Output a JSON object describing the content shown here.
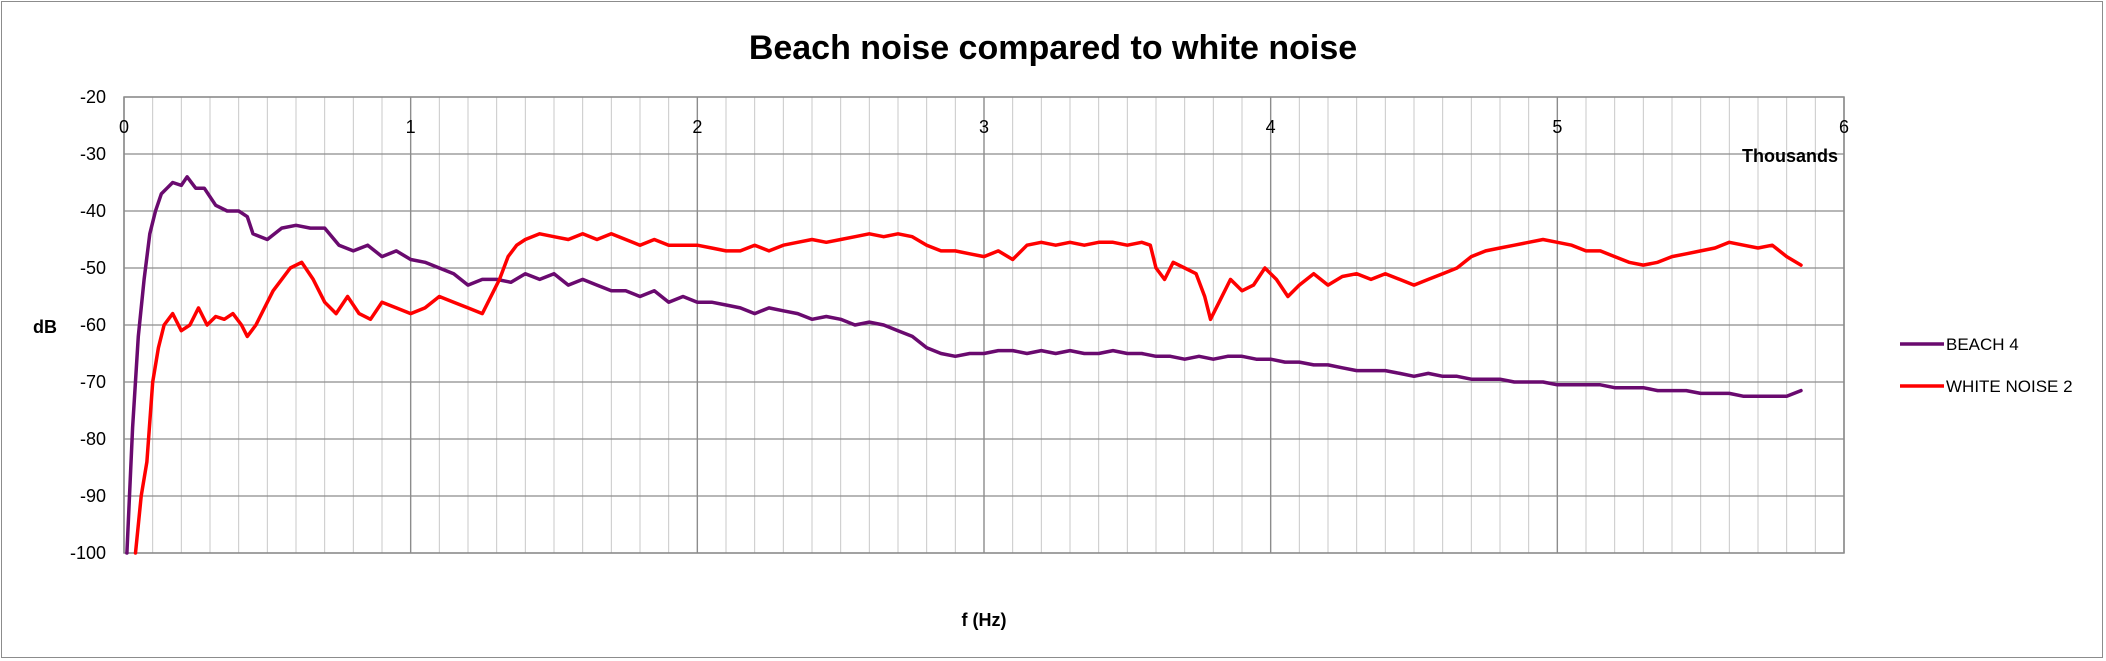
{
  "chart_data": {
    "type": "line",
    "title": "Beach noise compared to white noise",
    "xlabel": "f (Hz)",
    "ylabel": "dB",
    "x_unit_label": "Thousands",
    "xlim": [
      0,
      6
    ],
    "ylim": [
      -100,
      -20
    ],
    "x_ticks": [
      "0",
      "1",
      "2",
      "3",
      "4",
      "5",
      "6"
    ],
    "y_ticks": [
      "-20",
      "-30",
      "-40",
      "-50",
      "-60",
      "-70",
      "-80",
      "-90",
      "-100"
    ],
    "grid": true,
    "legend_position": "right",
    "series": [
      {
        "name": "BEACH 4",
        "color": "#6a0a6f",
        "points": [
          [
            0.01,
            -100
          ],
          [
            0.03,
            -78
          ],
          [
            0.05,
            -62
          ],
          [
            0.07,
            -52
          ],
          [
            0.09,
            -44
          ],
          [
            0.11,
            -40
          ],
          [
            0.13,
            -37
          ],
          [
            0.15,
            -36
          ],
          [
            0.17,
            -35
          ],
          [
            0.2,
            -35.5
          ],
          [
            0.22,
            -34
          ],
          [
            0.25,
            -36
          ],
          [
            0.28,
            -36
          ],
          [
            0.32,
            -39
          ],
          [
            0.36,
            -40
          ],
          [
            0.4,
            -40
          ],
          [
            0.43,
            -41
          ],
          [
            0.45,
            -44
          ],
          [
            0.5,
            -45
          ],
          [
            0.55,
            -43
          ],
          [
            0.6,
            -42.5
          ],
          [
            0.65,
            -43
          ],
          [
            0.7,
            -43
          ],
          [
            0.75,
            -46
          ],
          [
            0.8,
            -47
          ],
          [
            0.85,
            -46
          ],
          [
            0.9,
            -48
          ],
          [
            0.95,
            -47
          ],
          [
            1.0,
            -48.5
          ],
          [
            1.05,
            -49
          ],
          [
            1.1,
            -50
          ],
          [
            1.15,
            -51
          ],
          [
            1.2,
            -53
          ],
          [
            1.25,
            -52
          ],
          [
            1.3,
            -52
          ],
          [
            1.35,
            -52.5
          ],
          [
            1.4,
            -51
          ],
          [
            1.45,
            -52
          ],
          [
            1.5,
            -51
          ],
          [
            1.55,
            -53
          ],
          [
            1.6,
            -52
          ],
          [
            1.65,
            -53
          ],
          [
            1.7,
            -54
          ],
          [
            1.75,
            -54
          ],
          [
            1.8,
            -55
          ],
          [
            1.85,
            -54
          ],
          [
            1.9,
            -56
          ],
          [
            1.95,
            -55
          ],
          [
            2.0,
            -56
          ],
          [
            2.05,
            -56
          ],
          [
            2.1,
            -56.5
          ],
          [
            2.15,
            -57
          ],
          [
            2.2,
            -58
          ],
          [
            2.25,
            -57
          ],
          [
            2.3,
            -57.5
          ],
          [
            2.35,
            -58
          ],
          [
            2.4,
            -59
          ],
          [
            2.45,
            -58.5
          ],
          [
            2.5,
            -59
          ],
          [
            2.55,
            -60
          ],
          [
            2.6,
            -59.5
          ],
          [
            2.65,
            -60
          ],
          [
            2.7,
            -61
          ],
          [
            2.75,
            -62
          ],
          [
            2.8,
            -64
          ],
          [
            2.85,
            -65
          ],
          [
            2.9,
            -65.5
          ],
          [
            2.95,
            -65
          ],
          [
            3.0,
            -65
          ],
          [
            3.05,
            -64.5
          ],
          [
            3.1,
            -64.5
          ],
          [
            3.15,
            -65
          ],
          [
            3.2,
            -64.5
          ],
          [
            3.25,
            -65
          ],
          [
            3.3,
            -64.5
          ],
          [
            3.35,
            -65
          ],
          [
            3.4,
            -65
          ],
          [
            3.45,
            -64.5
          ],
          [
            3.5,
            -65
          ],
          [
            3.55,
            -65
          ],
          [
            3.6,
            -65.5
          ],
          [
            3.65,
            -65.5
          ],
          [
            3.7,
            -66
          ],
          [
            3.75,
            -65.5
          ],
          [
            3.8,
            -66
          ],
          [
            3.85,
            -65.5
          ],
          [
            3.9,
            -65.5
          ],
          [
            3.95,
            -66
          ],
          [
            4.0,
            -66
          ],
          [
            4.05,
            -66.5
          ],
          [
            4.1,
            -66.5
          ],
          [
            4.15,
            -67
          ],
          [
            4.2,
            -67
          ],
          [
            4.25,
            -67.5
          ],
          [
            4.3,
            -68
          ],
          [
            4.35,
            -68
          ],
          [
            4.4,
            -68
          ],
          [
            4.45,
            -68.5
          ],
          [
            4.5,
            -69
          ],
          [
            4.55,
            -68.5
          ],
          [
            4.6,
            -69
          ],
          [
            4.65,
            -69
          ],
          [
            4.7,
            -69.5
          ],
          [
            4.75,
            -69.5
          ],
          [
            4.8,
            -69.5
          ],
          [
            4.85,
            -70
          ],
          [
            4.9,
            -70
          ],
          [
            4.95,
            -70
          ],
          [
            5.0,
            -70.5
          ],
          [
            5.05,
            -70.5
          ],
          [
            5.1,
            -70.5
          ],
          [
            5.15,
            -70.5
          ],
          [
            5.2,
            -71
          ],
          [
            5.25,
            -71
          ],
          [
            5.3,
            -71
          ],
          [
            5.35,
            -71.5
          ],
          [
            5.4,
            -71.5
          ],
          [
            5.45,
            -71.5
          ],
          [
            5.5,
            -72
          ],
          [
            5.55,
            -72
          ],
          [
            5.6,
            -72
          ],
          [
            5.65,
            -72.5
          ],
          [
            5.7,
            -72.5
          ],
          [
            5.75,
            -72.5
          ],
          [
            5.8,
            -72.5
          ],
          [
            5.85,
            -71.5
          ]
        ]
      },
      {
        "name": "WHITE NOISE 2",
        "color": "#ff0000",
        "points": [
          [
            0.04,
            -100
          ],
          [
            0.06,
            -90
          ],
          [
            0.08,
            -84
          ],
          [
            0.1,
            -70
          ],
          [
            0.12,
            -64
          ],
          [
            0.14,
            -60
          ],
          [
            0.17,
            -58
          ],
          [
            0.2,
            -61
          ],
          [
            0.23,
            -60
          ],
          [
            0.26,
            -57
          ],
          [
            0.29,
            -60
          ],
          [
            0.32,
            -58.5
          ],
          [
            0.35,
            -59
          ],
          [
            0.38,
            -58
          ],
          [
            0.41,
            -60
          ],
          [
            0.43,
            -62
          ],
          [
            0.46,
            -60
          ],
          [
            0.49,
            -57
          ],
          [
            0.52,
            -54
          ],
          [
            0.55,
            -52
          ],
          [
            0.58,
            -50
          ],
          [
            0.62,
            -49
          ],
          [
            0.66,
            -52
          ],
          [
            0.7,
            -56
          ],
          [
            0.74,
            -58
          ],
          [
            0.78,
            -55
          ],
          [
            0.82,
            -58
          ],
          [
            0.86,
            -59
          ],
          [
            0.9,
            -56
          ],
          [
            0.95,
            -57
          ],
          [
            1.0,
            -58
          ],
          [
            1.05,
            -57
          ],
          [
            1.1,
            -55
          ],
          [
            1.15,
            -56
          ],
          [
            1.2,
            -57
          ],
          [
            1.25,
            -58
          ],
          [
            1.28,
            -55
          ],
          [
            1.31,
            -52
          ],
          [
            1.34,
            -48
          ],
          [
            1.37,
            -46
          ],
          [
            1.4,
            -45
          ],
          [
            1.45,
            -44
          ],
          [
            1.5,
            -44.5
          ],
          [
            1.55,
            -45
          ],
          [
            1.6,
            -44
          ],
          [
            1.65,
            -45
          ],
          [
            1.7,
            -44
          ],
          [
            1.75,
            -45
          ],
          [
            1.8,
            -46
          ],
          [
            1.85,
            -45
          ],
          [
            1.9,
            -46
          ],
          [
            1.95,
            -46
          ],
          [
            2.0,
            -46
          ],
          [
            2.05,
            -46.5
          ],
          [
            2.1,
            -47
          ],
          [
            2.15,
            -47
          ],
          [
            2.2,
            -46
          ],
          [
            2.25,
            -47
          ],
          [
            2.3,
            -46
          ],
          [
            2.35,
            -45.5
          ],
          [
            2.4,
            -45
          ],
          [
            2.45,
            -45.5
          ],
          [
            2.5,
            -45
          ],
          [
            2.55,
            -44.5
          ],
          [
            2.6,
            -44
          ],
          [
            2.65,
            -44.5
          ],
          [
            2.7,
            -44
          ],
          [
            2.75,
            -44.5
          ],
          [
            2.8,
            -46
          ],
          [
            2.85,
            -47
          ],
          [
            2.9,
            -47
          ],
          [
            2.95,
            -47.5
          ],
          [
            3.0,
            -48
          ],
          [
            3.05,
            -47
          ],
          [
            3.1,
            -48.5
          ],
          [
            3.15,
            -46
          ],
          [
            3.2,
            -45.5
          ],
          [
            3.25,
            -46
          ],
          [
            3.3,
            -45.5
          ],
          [
            3.35,
            -46
          ],
          [
            3.4,
            -45.5
          ],
          [
            3.45,
            -45.5
          ],
          [
            3.5,
            -46
          ],
          [
            3.55,
            -45.5
          ],
          [
            3.58,
            -46
          ],
          [
            3.6,
            -50
          ],
          [
            3.63,
            -52
          ],
          [
            3.66,
            -49
          ],
          [
            3.7,
            -50
          ],
          [
            3.74,
            -51
          ],
          [
            3.77,
            -55
          ],
          [
            3.79,
            -59
          ],
          [
            3.82,
            -56
          ],
          [
            3.86,
            -52
          ],
          [
            3.9,
            -54
          ],
          [
            3.94,
            -53
          ],
          [
            3.98,
            -50
          ],
          [
            4.02,
            -52
          ],
          [
            4.06,
            -55
          ],
          [
            4.1,
            -53
          ],
          [
            4.15,
            -51
          ],
          [
            4.2,
            -53
          ],
          [
            4.25,
            -51.5
          ],
          [
            4.3,
            -51
          ],
          [
            4.35,
            -52
          ],
          [
            4.4,
            -51
          ],
          [
            4.45,
            -52
          ],
          [
            4.5,
            -53
          ],
          [
            4.55,
            -52
          ],
          [
            4.6,
            -51
          ],
          [
            4.65,
            -50
          ],
          [
            4.7,
            -48
          ],
          [
            4.75,
            -47
          ],
          [
            4.8,
            -46.5
          ],
          [
            4.85,
            -46
          ],
          [
            4.9,
            -45.5
          ],
          [
            4.95,
            -45
          ],
          [
            5.0,
            -45.5
          ],
          [
            5.05,
            -46
          ],
          [
            5.1,
            -47
          ],
          [
            5.15,
            -47
          ],
          [
            5.2,
            -48
          ],
          [
            5.25,
            -49
          ],
          [
            5.3,
            -49.5
          ],
          [
            5.35,
            -49
          ],
          [
            5.4,
            -48
          ],
          [
            5.45,
            -47.5
          ],
          [
            5.5,
            -47
          ],
          [
            5.55,
            -46.5
          ],
          [
            5.6,
            -45.5
          ],
          [
            5.65,
            -46
          ],
          [
            5.7,
            -46.5
          ],
          [
            5.75,
            -46
          ],
          [
            5.8,
            -48
          ],
          [
            5.85,
            -49.5
          ]
        ]
      }
    ]
  }
}
